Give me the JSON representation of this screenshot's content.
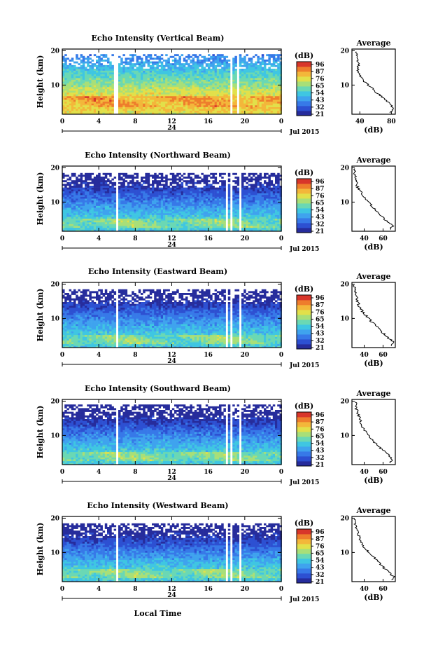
{
  "colors": {
    "colormap": [
      "#262c9c",
      "#2d50d2",
      "#3779e8",
      "#3fa3ee",
      "#3fc6e2",
      "#6ad8b4",
      "#a8df78",
      "#e2e04a",
      "#f3b73a",
      "#ee7d2c",
      "#d8362a"
    ]
  },
  "footer": {
    "xlabel": "Local Time"
  },
  "chart_data": [
    {
      "type": "heatmap",
      "title": "Echo Intensity (Vertical Beam)",
      "ylabel": "Height (km)",
      "xlabel": "Local Time",
      "x_ticks": [
        "0",
        "4",
        "8",
        "12",
        "16",
        "20",
        "0"
      ],
      "y_ticks": [
        "20",
        "10"
      ],
      "xlim": [
        0,
        24
      ],
      "ylim": [
        1.5,
        20.5
      ],
      "date_label": "24",
      "month_label": "Jul 2015",
      "colorbar": {
        "unit": "(dB)",
        "ticks": [
          "96",
          "87",
          "76",
          "65",
          "54",
          "43",
          "32",
          "21"
        ]
      },
      "gaps": [
        [
          5.6,
          6.0
        ],
        [
          17.7,
          17.9
        ],
        [
          18.3,
          18.5
        ],
        [
          19.0,
          19.3
        ]
      ],
      "upper_limit_km": 18.5,
      "strong_layer": {
        "low_km": 3.5,
        "high_km": 6.5,
        "peak_db": 87
      },
      "average": {
        "title": "Average",
        "xlabel": "(dB)",
        "ylabel": "",
        "x_ticks": [
          "40",
          "80"
        ],
        "xlim": [
          30,
          85
        ],
        "y_ticks": [
          "20",
          "10"
        ],
        "height_km": [
          2,
          3,
          4,
          5,
          6,
          7,
          8,
          9,
          10,
          11,
          12,
          13,
          14,
          15,
          16,
          17,
          18,
          19,
          20
        ],
        "intensity_db": [
          78,
          83,
          80,
          76,
          71,
          66,
          60,
          56,
          51,
          46,
          42,
          40,
          38,
          37,
          39,
          37,
          36,
          37,
          34
        ]
      }
    },
    {
      "type": "heatmap",
      "title": "Echo Intensity (Northward Beam)",
      "ylabel": "Height (km)",
      "xlabel": "Local Time",
      "x_ticks": [
        "0",
        "4",
        "8",
        "12",
        "16",
        "20",
        "0"
      ],
      "y_ticks": [
        "20",
        "10"
      ],
      "xlim": [
        0,
        24
      ],
      "ylim": [
        1.5,
        20.5
      ],
      "date_label": "24",
      "month_label": "Jul 2015",
      "colorbar": {
        "unit": "(dB)",
        "ticks": [
          "96",
          "87",
          "76",
          "65",
          "54",
          "43",
          "32",
          "21"
        ]
      },
      "gaps": [
        [
          5.8,
          6.1
        ],
        [
          17.8,
          18.0
        ],
        [
          18.4,
          18.6
        ],
        [
          19.2,
          19.4
        ]
      ],
      "upper_limit_km": 18.0,
      "strong_layer": {
        "low_km": 2.5,
        "high_km": 5.0,
        "peak_db": 65
      },
      "average": {
        "title": "Average",
        "xlabel": "(dB)",
        "ylabel": "",
        "x_ticks": [
          "40",
          "60"
        ],
        "xlim": [
          27,
          73
        ],
        "y_ticks": [
          "20",
          "10"
        ],
        "height_km": [
          2,
          3,
          4,
          5,
          6,
          7,
          8,
          9,
          10,
          11,
          12,
          13,
          14,
          15,
          16,
          17,
          18,
          19,
          20
        ],
        "intensity_db": [
          68,
          70,
          66,
          62,
          58,
          55,
          51,
          48,
          44,
          41,
          38,
          36,
          34,
          32,
          33,
          31,
          30,
          31,
          29
        ]
      }
    },
    {
      "type": "heatmap",
      "title": "Echo Intensity (Eastward Beam)",
      "ylabel": "Height (km)",
      "xlabel": "Local Time",
      "x_ticks": [
        "0",
        "4",
        "8",
        "12",
        "16",
        "20",
        "0"
      ],
      "y_ticks": [
        "20",
        "10"
      ],
      "xlim": [
        0,
        24
      ],
      "ylim": [
        1.5,
        20.5
      ],
      "date_label": "24",
      "month_label": "Jul 2015",
      "colorbar": {
        "unit": "(dB)",
        "ticks": [
          "96",
          "87",
          "76",
          "65",
          "54",
          "43",
          "32",
          "21"
        ]
      },
      "gaps": [
        [
          5.8,
          6.1
        ],
        [
          17.8,
          18.0
        ],
        [
          18.4,
          18.6
        ],
        [
          19.2,
          19.4
        ]
      ],
      "upper_limit_km": 18.0,
      "strong_layer": {
        "low_km": 2.5,
        "high_km": 5.0,
        "peak_db": 65
      },
      "average": {
        "title": "Average",
        "xlabel": "(dB)",
        "ylabel": "",
        "x_ticks": [
          "40",
          "60"
        ],
        "xlim": [
          27,
          73
        ],
        "y_ticks": [
          "20",
          "10"
        ],
        "height_km": [
          2,
          3,
          4,
          5,
          6,
          7,
          8,
          9,
          10,
          11,
          12,
          13,
          14,
          15,
          16,
          17,
          18,
          19,
          20
        ],
        "intensity_db": [
          69,
          71,
          67,
          63,
          59,
          55,
          52,
          48,
          45,
          41,
          38,
          36,
          34,
          33,
          32,
          31,
          30,
          31,
          28
        ]
      }
    },
    {
      "type": "heatmap",
      "title": "Echo Intensity (Southward Beam)",
      "ylabel": "Height (km)",
      "xlabel": "Local Time",
      "x_ticks": [
        "0",
        "4",
        "8",
        "12",
        "16",
        "20",
        "0"
      ],
      "y_ticks": [
        "20",
        "10"
      ],
      "xlim": [
        0,
        24
      ],
      "ylim": [
        1.5,
        20.5
      ],
      "date_label": "24",
      "month_label": "Jul 2015",
      "colorbar": {
        "unit": "(dB)",
        "ticks": [
          "96",
          "87",
          "76",
          "65",
          "54",
          "43",
          "32",
          "21"
        ]
      },
      "gaps": [
        [
          5.8,
          6.1
        ],
        [
          17.8,
          18.0
        ],
        [
          18.4,
          18.6
        ],
        [
          19.2,
          19.4
        ]
      ],
      "upper_limit_km": 18.5,
      "strong_layer": {
        "low_km": 2.5,
        "high_km": 5.0,
        "peak_db": 65
      },
      "average": {
        "title": "Average",
        "xlabel": "(dB)",
        "ylabel": "",
        "x_ticks": [
          "40",
          "60"
        ],
        "xlim": [
          27,
          73
        ],
        "y_ticks": [
          "20",
          "10"
        ],
        "height_km": [
          2,
          3,
          4,
          5,
          6,
          7,
          8,
          9,
          10,
          11,
          12,
          13,
          14,
          15,
          16,
          17,
          18,
          19,
          20
        ],
        "intensity_db": [
          68,
          70,
          67,
          63,
          58,
          55,
          51,
          48,
          45,
          42,
          39,
          37,
          36,
          35,
          34,
          33,
          31,
          32,
          29
        ]
      }
    },
    {
      "type": "heatmap",
      "title": "Echo Intensity (Westward Beam)",
      "ylabel": "Height (km)",
      "xlabel": "Local Time",
      "x_ticks": [
        "0",
        "4",
        "8",
        "12",
        "16",
        "20",
        "0"
      ],
      "y_ticks": [
        "20",
        "10"
      ],
      "xlim": [
        0,
        24
      ],
      "ylim": [
        1.5,
        20.5
      ],
      "date_label": "24",
      "month_label": "Jul 2015",
      "colorbar": {
        "unit": "(dB)",
        "ticks": [
          "96",
          "87",
          "76",
          "65",
          "54",
          "43",
          "32",
          "21"
        ]
      },
      "gaps": [
        [
          5.8,
          6.1
        ],
        [
          17.8,
          18.0
        ],
        [
          18.4,
          18.6
        ],
        [
          19.2,
          19.4
        ]
      ],
      "upper_limit_km": 18.0,
      "strong_layer": {
        "low_km": 2.5,
        "high_km": 5.0,
        "peak_db": 65
      },
      "average": {
        "title": "Average",
        "xlabel": "(dB)",
        "ylabel": "",
        "x_ticks": [
          "40",
          "60"
        ],
        "xlim": [
          27,
          73
        ],
        "y_ticks": [
          "20",
          "10"
        ],
        "height_km": [
          2,
          3,
          4,
          5,
          6,
          7,
          8,
          9,
          10,
          11,
          12,
          13,
          14,
          15,
          16,
          17,
          18,
          19,
          20
        ],
        "intensity_db": [
          69,
          71,
          67,
          63,
          59,
          56,
          52,
          49,
          45,
          42,
          39,
          37,
          35,
          34,
          33,
          32,
          30,
          31,
          28
        ]
      }
    }
  ]
}
